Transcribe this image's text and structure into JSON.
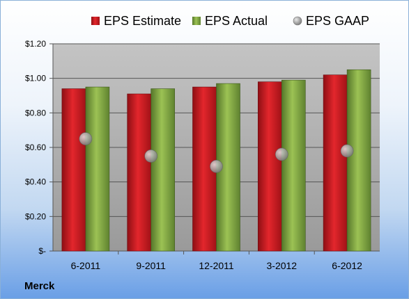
{
  "company": "Merck",
  "colors": {
    "estimate": "#c8161d",
    "actual": "#7da13a",
    "gaap": "#b0b0b0"
  },
  "chart_data": {
    "type": "bar",
    "categories": [
      "6-2011",
      "9-2011",
      "12-2011",
      "3-2012",
      "6-2012"
    ],
    "series": [
      {
        "name": "EPS Estimate",
        "type": "bar",
        "values": [
          0.94,
          0.91,
          0.95,
          0.98,
          1.02
        ]
      },
      {
        "name": "EPS Actual",
        "type": "bar",
        "values": [
          0.95,
          0.94,
          0.97,
          0.99,
          1.05
        ]
      },
      {
        "name": "EPS GAAP",
        "type": "scatter",
        "values": [
          0.65,
          0.55,
          0.49,
          0.56,
          0.58
        ]
      }
    ],
    "yticks": [
      0,
      0.2,
      0.4,
      0.6,
      0.8,
      1.0,
      1.2
    ],
    "ytick_labels": [
      "$-",
      "$0.20",
      "$0.40",
      "$0.60",
      "$0.80",
      "$1.00",
      "$1.20"
    ],
    "ylim": [
      0,
      1.2
    ],
    "grid": true,
    "legend_position": "top"
  }
}
